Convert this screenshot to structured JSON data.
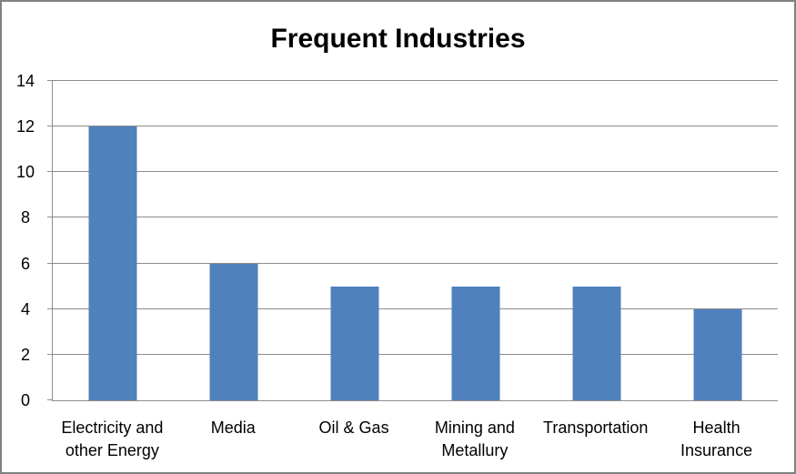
{
  "frame": {
    "border_color": "#808080",
    "background_color": "#ffffff"
  },
  "chart_data": {
    "type": "bar",
    "title": "Frequent Industries",
    "categories": [
      "Electricity and\nother Energy",
      "Media",
      "Oil & Gas",
      "Mining and\nMetallury",
      "Transportation",
      "Health\nInsurance"
    ],
    "values": [
      12,
      6,
      5,
      5,
      5,
      4
    ],
    "xlabel": "",
    "ylabel": "",
    "ylim": [
      0,
      14
    ],
    "yticks": [
      0,
      2,
      4,
      6,
      8,
      10,
      12,
      14
    ],
    "grid": true,
    "legend": false,
    "bar_color": "#4F81BD",
    "gridline_color": "#8c8c8c",
    "axis_color": "#8c8c8c",
    "text_color": "#000000"
  }
}
